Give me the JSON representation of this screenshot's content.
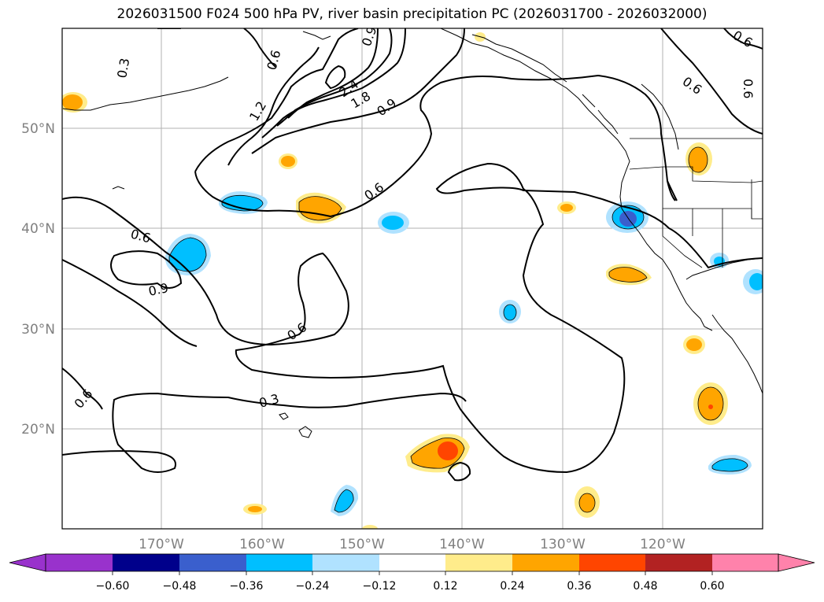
{
  "title": "2026031500 F024 500 hPa PV, river basin precipitation PC (2026031700 - 2026032000)",
  "map": {
    "lat_labels": [
      "50°N",
      "40°N",
      "30°N",
      "20°N"
    ],
    "lon_labels": [
      "170°W",
      "160°W",
      "150°W",
      "140°W",
      "130°W",
      "120°W"
    ],
    "contour_labels": [
      "0.3",
      "0.6",
      "0.6",
      "0.9",
      "0.6",
      "0.6",
      "0.3",
      "0.6",
      "1.2",
      "1.8",
      "2.4",
      "0.9",
      "0.6",
      "0.6",
      "0.6",
      "0.9"
    ]
  },
  "colorbar": {
    "ticks": [
      "−0.60",
      "−0.48",
      "−0.36",
      "−0.24",
      "−0.12",
      "0.12",
      "0.24",
      "0.36",
      "0.48",
      "0.60"
    ],
    "colors": [
      "#9932cc",
      "#00008b",
      "#3a5fcd",
      "#00bfff",
      "#b0e2ff",
      "#ffffff",
      "#ffec8b",
      "#ffa500",
      "#ff4500",
      "#b22222",
      "#ff82ab"
    ]
  },
  "colors": {
    "pos_low": "#ffec8b",
    "pos_mid": "#ffa500",
    "pos_high": "#ff4500",
    "neg_low": "#b0e2ff",
    "neg_mid": "#00bfff",
    "neg_high": "#3a5fcd",
    "grid": "#b0b0b0",
    "contour": "#000000"
  }
}
